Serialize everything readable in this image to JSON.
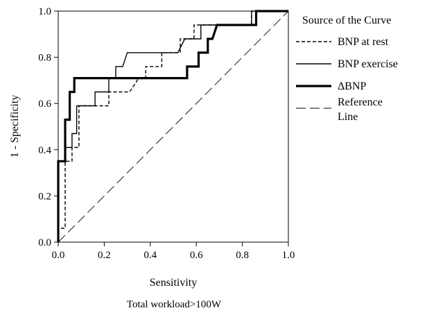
{
  "chart_data": {
    "type": "line",
    "title": "",
    "caption": "Total workload>100W",
    "xlabel": "Sensitivity",
    "ylabel": "1 - Specificity",
    "xlim": [
      0,
      1
    ],
    "ylim": [
      0,
      1
    ],
    "x_ticks": [
      "0.0",
      "0.2",
      "0.4",
      "0.6",
      "0.8",
      "1.0"
    ],
    "y_ticks": [
      "0.0",
      "0.2",
      "0.4",
      "0.6",
      "0.8",
      "1.0"
    ],
    "grid": false,
    "legend": {
      "title": "Source of the Curve",
      "placement": "right"
    },
    "series": [
      {
        "name": "BNP at rest",
        "style": "dashed-short",
        "points": [
          [
            0,
            0
          ],
          [
            0,
            0.06
          ],
          [
            0.03,
            0.06
          ],
          [
            0.03,
            0.35
          ],
          [
            0.06,
            0.35
          ],
          [
            0.06,
            0.41
          ],
          [
            0.09,
            0.41
          ],
          [
            0.09,
            0.59
          ],
          [
            0.17,
            0.59
          ],
          [
            0.17,
            0.59
          ],
          [
            0.22,
            0.59
          ],
          [
            0.22,
            0.65
          ],
          [
            0.31,
            0.65
          ],
          [
            0.35,
            0.71
          ],
          [
            0.38,
            0.71
          ],
          [
            0.38,
            0.76
          ],
          [
            0.45,
            0.76
          ],
          [
            0.45,
            0.82
          ],
          [
            0.53,
            0.82
          ],
          [
            0.53,
            0.88
          ],
          [
            0.56,
            0.88
          ],
          [
            0.56,
            0.88
          ],
          [
            0.59,
            0.88
          ],
          [
            0.59,
            0.94
          ],
          [
            0.63,
            0.94
          ],
          [
            0.65,
            0.94
          ],
          [
            0.84,
            0.94
          ],
          [
            0.84,
            1.0
          ],
          [
            1.0,
            1.0
          ]
        ]
      },
      {
        "name": "BNP exercise",
        "style": "solid-thin",
        "points": [
          [
            0,
            0
          ],
          [
            0,
            0.35
          ],
          [
            0.03,
            0.35
          ],
          [
            0.03,
            0.41
          ],
          [
            0.06,
            0.41
          ],
          [
            0.06,
            0.47
          ],
          [
            0.08,
            0.47
          ],
          [
            0.08,
            0.59
          ],
          [
            0.16,
            0.59
          ],
          [
            0.16,
            0.65
          ],
          [
            0.22,
            0.65
          ],
          [
            0.22,
            0.71
          ],
          [
            0.25,
            0.71
          ],
          [
            0.25,
            0.76
          ],
          [
            0.28,
            0.76
          ],
          [
            0.3,
            0.82
          ],
          [
            0.52,
            0.82
          ],
          [
            0.55,
            0.88
          ],
          [
            0.62,
            0.88
          ],
          [
            0.62,
            0.94
          ],
          [
            0.84,
            0.94
          ],
          [
            0.84,
            1.0
          ],
          [
            1.0,
            1.0
          ]
        ]
      },
      {
        "name": "ΔBNP",
        "style": "solid-thick",
        "points": [
          [
            0,
            0
          ],
          [
            0,
            0.35
          ],
          [
            0.03,
            0.35
          ],
          [
            0.03,
            0.53
          ],
          [
            0.05,
            0.53
          ],
          [
            0.05,
            0.65
          ],
          [
            0.07,
            0.65
          ],
          [
            0.07,
            0.71
          ],
          [
            0.56,
            0.71
          ],
          [
            0.56,
            0.76
          ],
          [
            0.61,
            0.76
          ],
          [
            0.61,
            0.82
          ],
          [
            0.65,
            0.82
          ],
          [
            0.65,
            0.88
          ],
          [
            0.67,
            0.88
          ],
          [
            0.69,
            0.94
          ],
          [
            0.86,
            0.94
          ],
          [
            0.86,
            1.0
          ],
          [
            1.0,
            1.0
          ]
        ]
      },
      {
        "name": "Reference\nLine",
        "style": "dashed-long",
        "points": [
          [
            0,
            0
          ],
          [
            1,
            1
          ]
        ]
      }
    ]
  }
}
